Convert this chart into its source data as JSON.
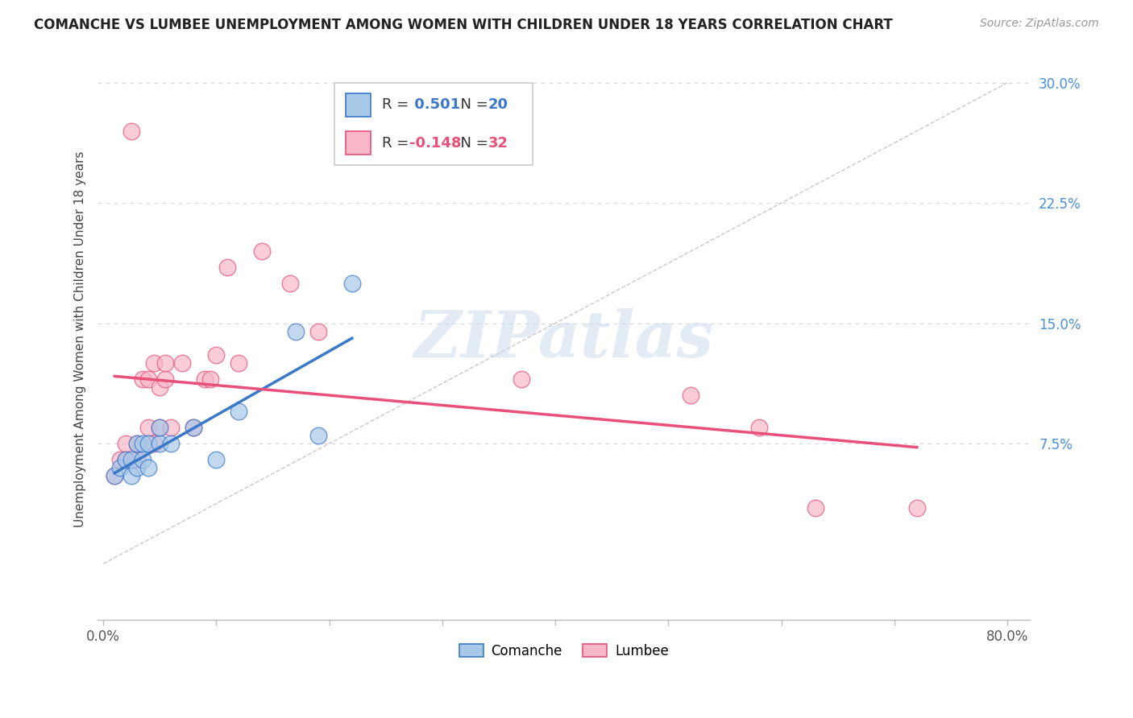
{
  "title": "COMANCHE VS LUMBEE UNEMPLOYMENT AMONG WOMEN WITH CHILDREN UNDER 18 YEARS CORRELATION CHART",
  "source": "Source: ZipAtlas.com",
  "ylabel": "Unemployment Among Women with Children Under 18 years",
  "R_comanche": 0.501,
  "N_comanche": 20,
  "R_lumbee": -0.148,
  "N_lumbee": 32,
  "comanche_color": "#a8c8e8",
  "lumbee_color": "#f8b8c8",
  "comanche_line_color": "#3a78c9",
  "lumbee_line_color": "#e8507a",
  "ref_line_color": "#bbbbbb",
  "watermark": "ZIPatlas",
  "xlim": [
    -0.005,
    0.82
  ],
  "ylim": [
    -0.035,
    0.315
  ],
  "xticks": [
    0.0,
    0.1,
    0.2,
    0.3,
    0.4,
    0.5,
    0.6,
    0.7,
    0.8
  ],
  "yticks": [
    0.075,
    0.15,
    0.225,
    0.3
  ],
  "comanche_x": [
    0.01,
    0.015,
    0.02,
    0.025,
    0.025,
    0.03,
    0.03,
    0.035,
    0.035,
    0.04,
    0.04,
    0.05,
    0.05,
    0.06,
    0.08,
    0.1,
    0.12,
    0.17,
    0.19,
    0.22
  ],
  "comanche_y": [
    0.055,
    0.06,
    0.065,
    0.055,
    0.065,
    0.06,
    0.075,
    0.065,
    0.075,
    0.06,
    0.075,
    0.075,
    0.085,
    0.075,
    0.085,
    0.065,
    0.095,
    0.145,
    0.08,
    0.175
  ],
  "lumbee_x": [
    0.01,
    0.015,
    0.02,
    0.02,
    0.025,
    0.03,
    0.03,
    0.035,
    0.04,
    0.04,
    0.045,
    0.045,
    0.05,
    0.05,
    0.055,
    0.055,
    0.06,
    0.07,
    0.08,
    0.09,
    0.095,
    0.1,
    0.11,
    0.12,
    0.14,
    0.165,
    0.19,
    0.37,
    0.52,
    0.58,
    0.63,
    0.72
  ],
  "lumbee_y": [
    0.055,
    0.065,
    0.065,
    0.075,
    0.27,
    0.065,
    0.075,
    0.115,
    0.085,
    0.115,
    0.075,
    0.125,
    0.085,
    0.11,
    0.115,
    0.125,
    0.085,
    0.125,
    0.085,
    0.115,
    0.115,
    0.13,
    0.185,
    0.125,
    0.195,
    0.175,
    0.145,
    0.115,
    0.105,
    0.085,
    0.035,
    0.035
  ],
  "background_color": "#ffffff",
  "grid_color": "#d8d8d8",
  "title_color": "#222222",
  "axis_label_color": "#444444",
  "tick_color_right": "#4a90d9",
  "tick_color_x": "#555555"
}
